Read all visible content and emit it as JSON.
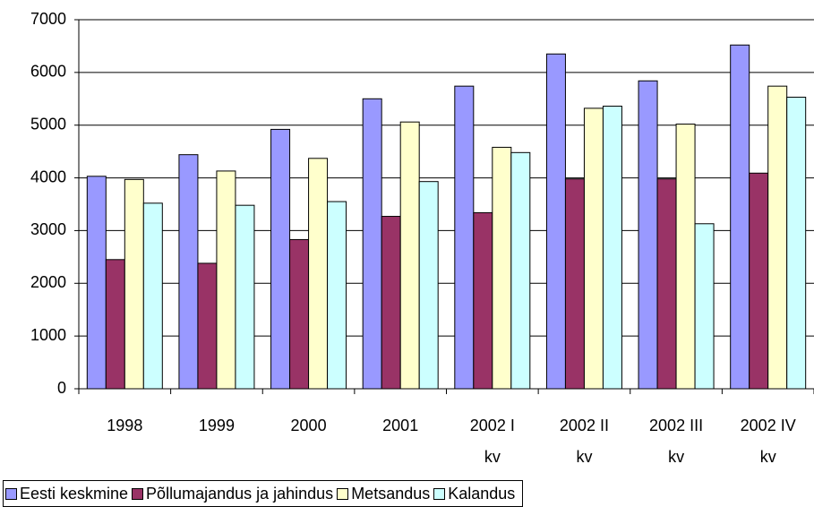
{
  "chart_data": {
    "type": "bar",
    "categories": [
      "1998",
      "1999",
      "2000",
      "2001",
      "2002 I\nkv",
      "2002 II\nkv",
      "2002 III\nkv",
      "2002 IV\nkv"
    ],
    "series": [
      {
        "name": "Eesti keskmine",
        "color": "#9999ff",
        "values": [
          4030,
          4440,
          4920,
          5500,
          5740,
          6350,
          5840,
          6520
        ]
      },
      {
        "name": "Põllumajandus ja jahindus",
        "color": "#993366",
        "values": [
          2450,
          2380,
          2830,
          3270,
          3340,
          3980,
          3980,
          4090
        ]
      },
      {
        "name": "Metsandus",
        "color": "#ffffcc",
        "values": [
          3970,
          4130,
          4370,
          5060,
          4580,
          5320,
          5020,
          5740
        ]
      },
      {
        "name": "Kalandus",
        "color": "#ccffff",
        "values": [
          3520,
          3480,
          3550,
          3930,
          4480,
          5360,
          3130,
          5530
        ]
      }
    ],
    "ylim": [
      0,
      7000
    ],
    "yticks": [
      0,
      1000,
      2000,
      3000,
      4000,
      5000,
      6000,
      7000
    ],
    "grid": true,
    "legend": "bottom"
  }
}
